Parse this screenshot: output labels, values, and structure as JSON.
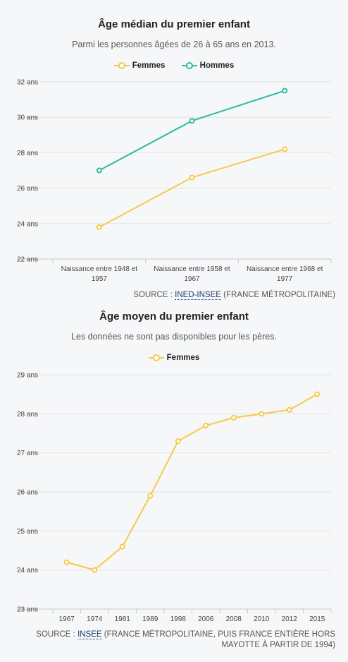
{
  "chart_data": [
    {
      "type": "line",
      "title": "Âge médian du premier enfant",
      "subtitle": "Parmi les personnes âgées de 26 à 65 ans en 2013.",
      "categories": [
        "Naissance entre 1948 et 1957",
        "Naissance entre 1958 et 1967",
        "Naissance entre 1968 et 1977"
      ],
      "y_ticks": [
        "22 ans",
        "24 ans",
        "26 ans",
        "28 ans",
        "30 ans",
        "32 ans"
      ],
      "ylim": [
        22,
        32
      ],
      "series": [
        {
          "name": "Femmes",
          "color": "#f7c94a",
          "values": [
            23.8,
            26.6,
            28.2
          ]
        },
        {
          "name": "Hommes",
          "color": "#2fb9a3",
          "values": [
            27.0,
            29.8,
            31.5
          ]
        }
      ],
      "grid": "horizontal",
      "legend": "top-center",
      "source_prefix": "SOURCE : ",
      "source_link": "INED-INSEE",
      "source_suffix": " (FRANCE MÉTROPOLITAINE)"
    },
    {
      "type": "line",
      "title": "Âge moyen du premier enfant",
      "subtitle": "Les données ne sont pas disponibles pour les pères.",
      "categories": [
        "1967",
        "1974",
        "1981",
        "1989",
        "1998",
        "2006",
        "2008",
        "2010",
        "2012",
        "2015"
      ],
      "y_ticks": [
        "23 ans",
        "24 ans",
        "25 ans",
        "26 ans",
        "27 ans",
        "28 ans",
        "29 ans"
      ],
      "ylim": [
        23,
        29
      ],
      "series": [
        {
          "name": "Femmes",
          "color": "#f7c94a",
          "values": [
            24.2,
            24.0,
            24.6,
            25.9,
            27.3,
            27.7,
            27.9,
            28.0,
            28.1,
            28.5
          ]
        }
      ],
      "grid": "horizontal",
      "legend": "top-center",
      "source_prefix": "SOURCE : ",
      "source_link": "INSEE",
      "source_suffix_line1": " (FRANCE MÉTROPOLITAINE, PUIS FRANCE ENTIÈRE HORS",
      "source_suffix_line2": "MAYOTTE À PARTIR DE 1994)"
    }
  ]
}
